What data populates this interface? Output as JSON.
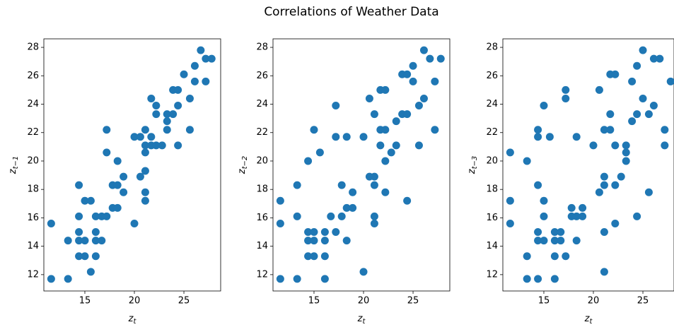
{
  "title": "Correlations of Weather Data",
  "chart_data": [
    {
      "type": "scatter",
      "color": "#1f77b4",
      "xlabel": {
        "text": "z",
        "subscript": "t"
      },
      "ylabel": {
        "text": "z",
        "subscript": "t−1"
      },
      "xlim": [
        10.86,
        28.71
      ],
      "ylim": [
        10.85,
        28.6
      ],
      "xticks": [
        15,
        20,
        25
      ],
      "yticks": [
        12,
        14,
        16,
        18,
        20,
        22,
        24,
        26,
        28
      ],
      "x": [
        11.6,
        11.6,
        13.3,
        13.3,
        14.4,
        14.4,
        14.4,
        14.4,
        14.4,
        15.0,
        15.0,
        15.0,
        15.6,
        15.6,
        16.1,
        16.1,
        16.1,
        16.1,
        16.7,
        16.7,
        17.2,
        17.2,
        17.2,
        17.8,
        17.8,
        18.3,
        18.3,
        18.3,
        18.9,
        18.9,
        20.0,
        20.0,
        20.6,
        20.6,
        21.1,
        21.1,
        21.1,
        21.1,
        21.1,
        21.1,
        21.7,
        21.7,
        21.7,
        22.2,
        22.2,
        22.2,
        22.8,
        23.3,
        23.3,
        23.3,
        23.9,
        23.9,
        24.4,
        24.4,
        24.4,
        25.0,
        25.6,
        25.6,
        26.1,
        26.1,
        26.7,
        27.2,
        27.2,
        27.8
      ],
      "y": [
        11.7,
        15.6,
        14.4,
        11.7,
        18.3,
        16.1,
        15.0,
        14.4,
        13.3,
        17.2,
        14.4,
        13.3,
        17.2,
        12.2,
        16.1,
        15.0,
        14.4,
        13.3,
        16.1,
        14.4,
        16.1,
        20.6,
        22.2,
        18.3,
        16.7,
        18.3,
        16.7,
        20.0,
        18.9,
        17.8,
        21.7,
        15.6,
        21.7,
        18.9,
        22.2,
        21.1,
        20.6,
        17.8,
        17.2,
        19.3,
        24.4,
        21.7,
        21.1,
        23.9,
        23.3,
        21.1,
        21.1,
        23.3,
        22.8,
        22.2,
        25.0,
        23.3,
        25.0,
        23.9,
        21.1,
        26.1,
        24.4,
        22.2,
        26.7,
        25.6,
        27.8,
        27.2,
        25.6,
        27.2
      ]
    },
    {
      "type": "scatter",
      "color": "#1f77b4",
      "xlabel": {
        "text": "z",
        "subscript": "t"
      },
      "ylabel": {
        "text": "z",
        "subscript": "t−2"
      },
      "xlim": [
        10.86,
        28.71
      ],
      "ylim": [
        10.85,
        28.6
      ],
      "xticks": [
        15,
        20,
        25
      ],
      "yticks": [
        12,
        14,
        16,
        18,
        20,
        22,
        24,
        26,
        28
      ],
      "x": [
        11.6,
        11.6,
        11.6,
        13.3,
        13.3,
        13.3,
        14.4,
        14.4,
        14.4,
        14.4,
        15.0,
        15.0,
        15.0,
        15.0,
        15.6,
        16.1,
        16.1,
        16.1,
        16.1,
        16.7,
        17.2,
        17.2,
        17.2,
        17.8,
        17.8,
        18.3,
        18.3,
        18.3,
        18.9,
        18.9,
        20.0,
        20.0,
        20.6,
        20.6,
        21.1,
        21.1,
        21.1,
        21.1,
        21.1,
        21.7,
        21.7,
        21.7,
        22.2,
        22.2,
        22.2,
        22.2,
        22.8,
        23.3,
        23.3,
        23.9,
        23.9,
        24.4,
        24.4,
        24.4,
        25.0,
        25.0,
        25.6,
        25.6,
        26.1,
        26.1,
        26.7,
        27.2,
        27.2,
        27.8
      ],
      "y": [
        17.2,
        15.6,
        11.7,
        18.3,
        16.1,
        11.7,
        20.0,
        15.0,
        14.4,
        13.3,
        22.2,
        15.0,
        14.4,
        13.3,
        20.6,
        15.0,
        14.4,
        13.3,
        11.7,
        16.1,
        23.9,
        21.7,
        15.0,
        18.3,
        16.1,
        21.7,
        16.7,
        14.4,
        17.8,
        16.7,
        21.7,
        12.2,
        24.4,
        18.9,
        23.3,
        18.9,
        18.3,
        16.1,
        15.6,
        25.0,
        22.2,
        21.1,
        25.0,
        22.2,
        20.0,
        17.8,
        20.6,
        22.8,
        21.1,
        26.1,
        23.3,
        26.1,
        23.3,
        17.2,
        26.7,
        25.6,
        23.9,
        21.1,
        27.8,
        24.4,
        27.2,
        25.6,
        22.2,
        27.2
      ]
    },
    {
      "type": "scatter",
      "color": "#1f77b4",
      "xlabel": {
        "text": "z",
        "subscript": "t"
      },
      "ylabel": {
        "text": "z",
        "subscript": "t−3"
      },
      "xlim": [
        10.86,
        28.14
      ],
      "ylim": [
        10.85,
        28.6
      ],
      "xticks": [
        15,
        20,
        25
      ],
      "yticks": [
        12,
        14,
        16,
        18,
        20,
        22,
        24,
        26,
        28
      ],
      "x": [
        11.6,
        11.6,
        11.6,
        13.3,
        13.3,
        13.3,
        14.4,
        14.4,
        14.4,
        14.4,
        14.4,
        14.4,
        15.0,
        15.0,
        15.0,
        15.0,
        15.6,
        16.1,
        16.1,
        16.1,
        16.1,
        16.7,
        16.7,
        17.2,
        17.2,
        17.2,
        17.8,
        17.8,
        18.3,
        18.3,
        18.3,
        18.9,
        18.9,
        20.0,
        20.6,
        20.6,
        21.1,
        21.1,
        21.1,
        21.1,
        21.1,
        21.7,
        21.7,
        21.7,
        22.2,
        22.2,
        22.2,
        22.2,
        22.8,
        23.3,
        23.3,
        23.3,
        23.9,
        23.9,
        24.4,
        24.4,
        24.4,
        25.0,
        25.0,
        25.6,
        25.6,
        26.1,
        26.1,
        26.7,
        27.2,
        27.2,
        27.8
      ],
      "y": [
        20.6,
        17.2,
        15.6,
        20.0,
        13.3,
        11.7,
        22.2,
        21.7,
        18.3,
        15.0,
        14.4,
        11.7,
        23.9,
        17.2,
        16.1,
        14.4,
        21.7,
        15.0,
        14.4,
        13.3,
        11.7,
        15.0,
        14.4,
        25.0,
        24.4,
        13.3,
        16.7,
        16.1,
        21.7,
        16.1,
        14.4,
        16.7,
        16.1,
        21.1,
        25.0,
        17.8,
        22.2,
        18.9,
        18.3,
        15.0,
        12.2,
        26.1,
        23.3,
        22.2,
        26.1,
        21.1,
        18.3,
        15.6,
        18.9,
        21.1,
        20.6,
        20.0,
        25.6,
        22.8,
        26.7,
        23.3,
        16.1,
        27.8,
        24.4,
        23.3,
        17.8,
        27.2,
        23.9,
        27.2,
        22.2,
        21.1,
        25.6
      ]
    }
  ]
}
